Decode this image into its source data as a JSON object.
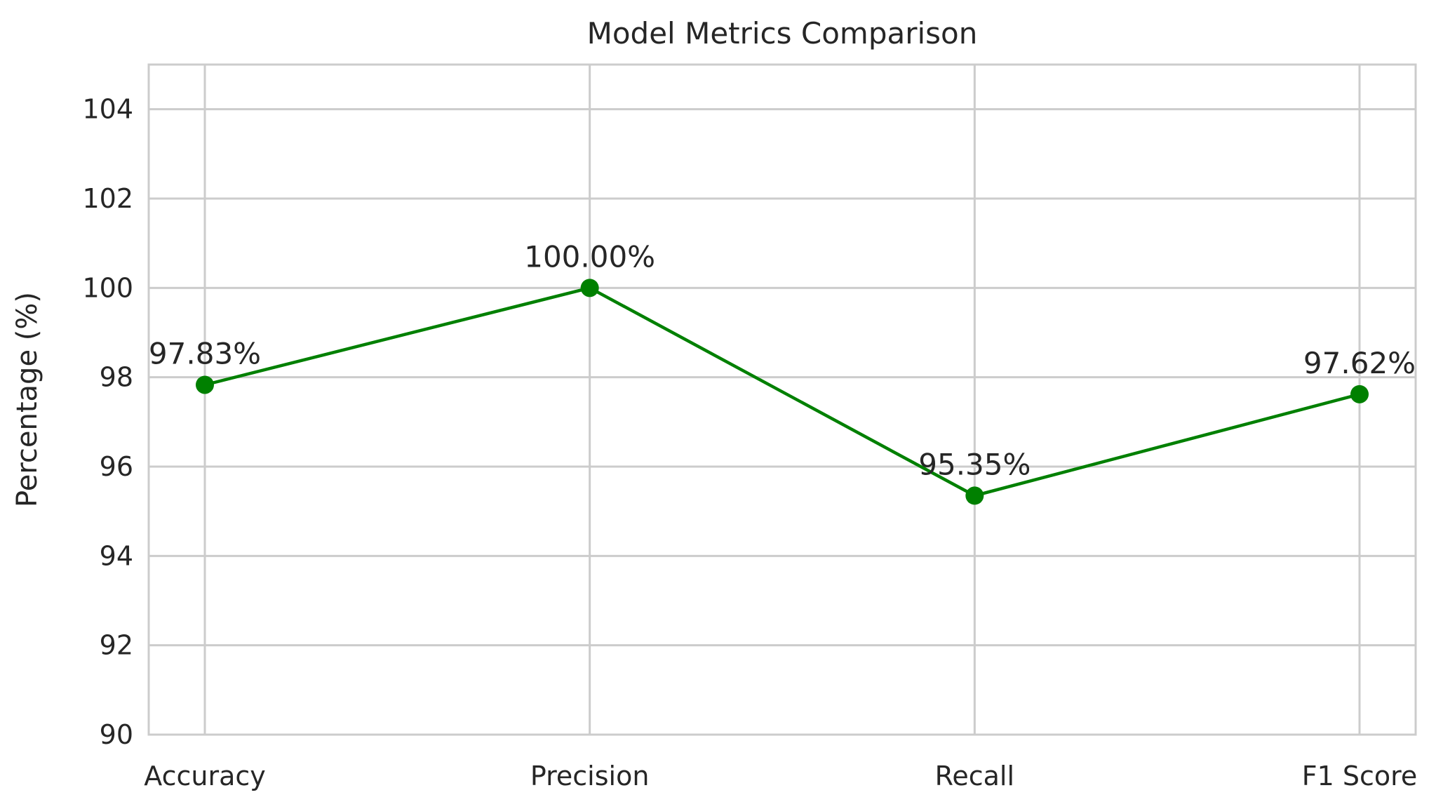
{
  "chart_data": {
    "type": "line",
    "title": "Model Metrics Comparison",
    "xlabel": "",
    "ylabel": "Percentage (%)",
    "categories": [
      "Accuracy",
      "Precision",
      "Recall",
      "F1 Score"
    ],
    "series": [
      {
        "values": [
          97.83,
          100.0,
          95.35,
          97.62
        ],
        "color": "#008000",
        "marker": "circle"
      }
    ],
    "data_labels": [
      "97.83%",
      "100.00%",
      "95.35%",
      "97.62%"
    ],
    "ylim": [
      90,
      105
    ],
    "yticks": [
      90,
      92,
      94,
      96,
      98,
      100,
      102,
      104
    ],
    "grid": true,
    "legend": "none",
    "colors": {
      "grid": "#cccccc",
      "spine": "#cccccc",
      "text": "#262626",
      "background": "#ffffff"
    }
  }
}
